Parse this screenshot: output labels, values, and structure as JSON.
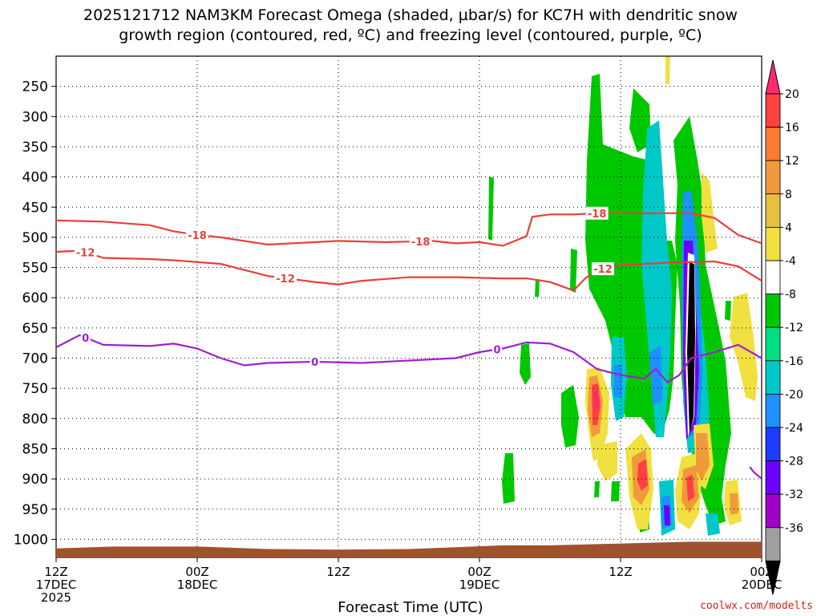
{
  "title": {
    "line1": "2025121712 NAM3KM Forecast Omega (shaded, µbar/s) for KC7H with dendritic snow",
    "line2": "growth region (contoured, red, ºC) and freezing level (contoured, purple, ºC)"
  },
  "credit": "coolwx.com/modelts",
  "chart_data": {
    "type": "time-height cross-section",
    "xlabel": "Forecast Time (UTC)",
    "x_ticks": [
      {
        "hour": 0,
        "lines": [
          "12Z",
          "17DEC",
          "2025"
        ]
      },
      {
        "hour": 12,
        "lines": [
          "00Z",
          "18DEC"
        ]
      },
      {
        "hour": 24,
        "lines": [
          "12Z"
        ]
      },
      {
        "hour": 36,
        "lines": [
          "00Z",
          "19DEC"
        ]
      },
      {
        "hour": 48,
        "lines": [
          "12Z"
        ]
      },
      {
        "hour": 60,
        "lines": [
          "00Z",
          "20DEC"
        ]
      }
    ],
    "xlim": [
      0,
      60
    ],
    "y_axis": "pressure (hPa)",
    "y_ticks": [
      250,
      300,
      350,
      400,
      450,
      500,
      550,
      600,
      650,
      700,
      750,
      800,
      850,
      900,
      950,
      1000
    ],
    "ylim": [
      200,
      1030
    ],
    "colorbar": {
      "labels": [
        20,
        16,
        12,
        8,
        4,
        -4,
        -8,
        -12,
        -16,
        -20,
        -24,
        -28,
        -32,
        -36
      ],
      "colors": [
        "#ff2a6d",
        "#ff4040",
        "#ff7a33",
        "#f09a3c",
        "#e8c040",
        "#f0e040",
        "#ffffff",
        "#00c800",
        "#00e080",
        "#00c8c8",
        "#1e90ff",
        "#1e3cff",
        "#6a00ff",
        "#a000c8",
        "#a0a0a0",
        "#000000"
      ]
    },
    "contours": [
      {
        "label": "-18",
        "color": "#e8403a",
        "points": [
          [
            0,
            472
          ],
          [
            4,
            474
          ],
          [
            8,
            480
          ],
          [
            10,
            490
          ],
          [
            12,
            496
          ],
          [
            14,
            500
          ],
          [
            18,
            512
          ],
          [
            22,
            508
          ],
          [
            24,
            506
          ],
          [
            28,
            508
          ],
          [
            32,
            506
          ],
          [
            34,
            510
          ],
          [
            36,
            508
          ],
          [
            38,
            514
          ],
          [
            40,
            498
          ],
          [
            40.5,
            466
          ],
          [
            42,
            462
          ],
          [
            44,
            462
          ],
          [
            46,
            460
          ],
          [
            48,
            460
          ],
          [
            52,
            460
          ],
          [
            54,
            460
          ],
          [
            56,
            468
          ],
          [
            58,
            496
          ],
          [
            60,
            510
          ]
        ]
      },
      {
        "label": "-12",
        "color": "#e8403a",
        "points": [
          [
            0,
            524
          ],
          [
            2,
            522
          ],
          [
            4,
            534
          ],
          [
            8,
            536
          ],
          [
            10,
            538
          ],
          [
            14,
            544
          ],
          [
            18,
            564
          ],
          [
            22,
            574
          ],
          [
            24,
            578
          ],
          [
            26,
            572
          ],
          [
            30,
            566
          ],
          [
            34,
            566
          ],
          [
            38,
            568
          ],
          [
            40,
            568
          ],
          [
            42,
            574
          ],
          [
            44,
            588
          ],
          [
            45,
            568
          ],
          [
            46,
            554
          ],
          [
            48,
            546
          ],
          [
            52,
            542
          ],
          [
            56,
            540
          ],
          [
            58,
            548
          ],
          [
            60,
            572
          ]
        ]
      },
      {
        "label": "0",
        "color": "#a020d0",
        "points": [
          [
            0,
            682
          ],
          [
            2,
            662
          ],
          [
            4,
            678
          ],
          [
            8,
            680
          ],
          [
            10,
            676
          ],
          [
            12,
            684
          ],
          [
            14,
            700
          ],
          [
            16,
            712
          ],
          [
            18,
            708
          ],
          [
            22,
            706
          ],
          [
            26,
            708
          ],
          [
            30,
            704
          ],
          [
            34,
            700
          ],
          [
            36,
            690
          ],
          [
            38,
            684
          ],
          [
            40,
            674
          ],
          [
            42,
            676
          ],
          [
            44,
            690
          ],
          [
            46,
            718
          ],
          [
            48,
            728
          ],
          [
            50,
            734
          ],
          [
            51,
            718
          ],
          [
            52,
            740
          ],
          [
            53,
            728
          ],
          [
            54,
            700
          ],
          [
            56,
            690
          ],
          [
            58,
            678
          ],
          [
            60,
            700
          ]
        ]
      },
      {
        "label": "",
        "color": "#a020d0",
        "points": [
          [
            59,
            880
          ],
          [
            59.3,
            888
          ],
          [
            60,
            900
          ]
        ]
      }
    ]
  }
}
